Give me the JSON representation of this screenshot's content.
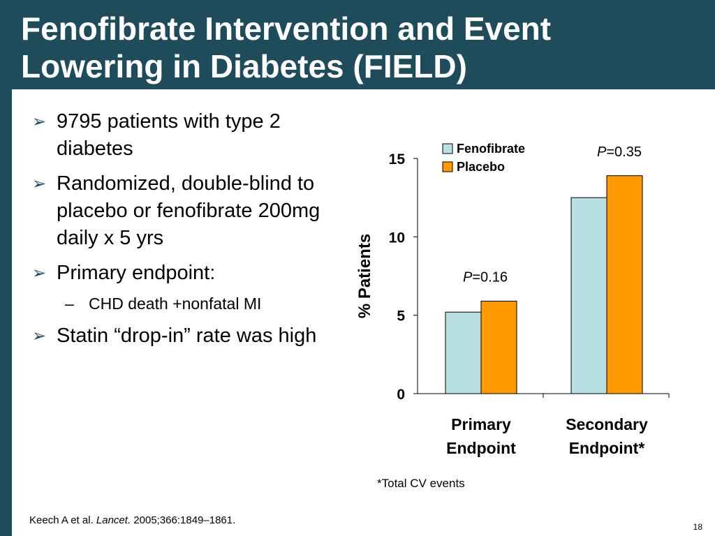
{
  "slide": {
    "title_line1": "Fenofibrate Intervention and Event",
    "title_line2": "Lowering in Diabetes (FIELD)",
    "bullets": [
      {
        "text": "9795 patients with type 2 diabetes"
      },
      {
        "text": "Randomized, double-blind to placebo or fenofibrate 200mg daily x 5 yrs"
      },
      {
        "text": "Primary endpoint:"
      },
      {
        "text": "CHD death +nonfatal MI",
        "sub": true
      },
      {
        "text": "Statin “drop-in” rate was high"
      }
    ],
    "footnote": "*Total CV events",
    "citation_authors": "Keech A et al. ",
    "citation_journal": "Lancet.",
    "citation_rest": " 2005;366:1849–1861.",
    "page_number": "18"
  },
  "chart_data": {
    "type": "bar",
    "categories": [
      [
        "Primary",
        "Endpoint"
      ],
      [
        "Secondary",
        "Endpoint*"
      ]
    ],
    "series": [
      {
        "name": "Fenofibrate",
        "values": [
          5.2,
          12.5
        ],
        "color": "#b8dfe2"
      },
      {
        "name": "Placebo",
        "values": [
          5.9,
          13.9
        ],
        "color": "#ff9900"
      }
    ],
    "ylabel": "% Patients",
    "ylim": [
      0,
      15
    ],
    "yticks": [
      0,
      5,
      10,
      15
    ],
    "legend": "top-left",
    "grid": false,
    "annotations": [
      {
        "category": 0,
        "italic": "P",
        "text": "=0.16"
      },
      {
        "category": 1,
        "italic": "P",
        "text": "=0.35"
      }
    ]
  }
}
